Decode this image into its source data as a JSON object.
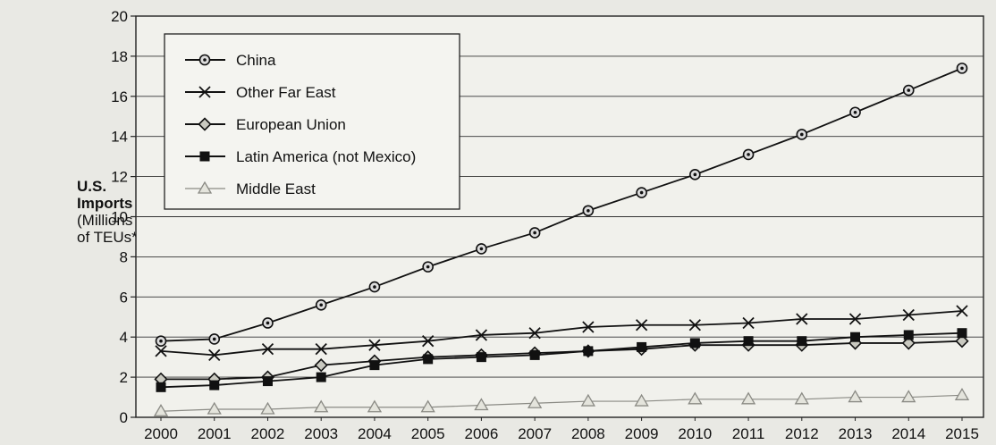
{
  "chart_data": {
    "type": "line",
    "title": "",
    "ylabel_lines": [
      "U.S.",
      "Imports",
      "(Millions",
      "of TEUs*)"
    ],
    "xlabel": "",
    "x": [
      "2000",
      "2001",
      "2002",
      "2003",
      "2004",
      "2005",
      "2006",
      "2007",
      "2008",
      "2009",
      "2010",
      "2011",
      "2012",
      "2013",
      "2014",
      "2015"
    ],
    "ylim": [
      0,
      20
    ],
    "yticks": [
      0,
      2,
      4,
      6,
      8,
      10,
      12,
      14,
      16,
      18,
      20
    ],
    "grid": true,
    "legend": "top-left",
    "series": [
      {
        "name": "China",
        "marker": "circle",
        "color": "#111111",
        "values": [
          3.8,
          3.9,
          4.7,
          5.6,
          6.5,
          7.5,
          8.4,
          9.2,
          10.3,
          11.2,
          12.1,
          13.1,
          14.1,
          15.2,
          16.3,
          17.4
        ]
      },
      {
        "name": "Other Far East",
        "marker": "x",
        "color": "#111111",
        "values": [
          3.3,
          3.1,
          3.4,
          3.4,
          3.6,
          3.8,
          4.1,
          4.2,
          4.5,
          4.6,
          4.6,
          4.7,
          4.9,
          4.9,
          5.1,
          5.3
        ]
      },
      {
        "name": "European Union",
        "marker": "diamond",
        "color": "#111111",
        "values": [
          1.9,
          1.9,
          2.0,
          2.6,
          2.8,
          3.0,
          3.1,
          3.2,
          3.3,
          3.4,
          3.6,
          3.6,
          3.6,
          3.7,
          3.7,
          3.8
        ]
      },
      {
        "name": "Latin America (not Mexico)",
        "marker": "square",
        "color": "#111111",
        "values": [
          1.5,
          1.6,
          1.8,
          2.0,
          2.6,
          2.9,
          3.0,
          3.1,
          3.3,
          3.5,
          3.7,
          3.8,
          3.8,
          4.0,
          4.1,
          4.2
        ]
      },
      {
        "name": "Middle East",
        "marker": "triangle",
        "color": "#8a8a84",
        "values": [
          0.3,
          0.4,
          0.4,
          0.5,
          0.5,
          0.5,
          0.6,
          0.7,
          0.8,
          0.8,
          0.9,
          0.9,
          0.9,
          1.0,
          1.0,
          1.1
        ]
      }
    ]
  }
}
